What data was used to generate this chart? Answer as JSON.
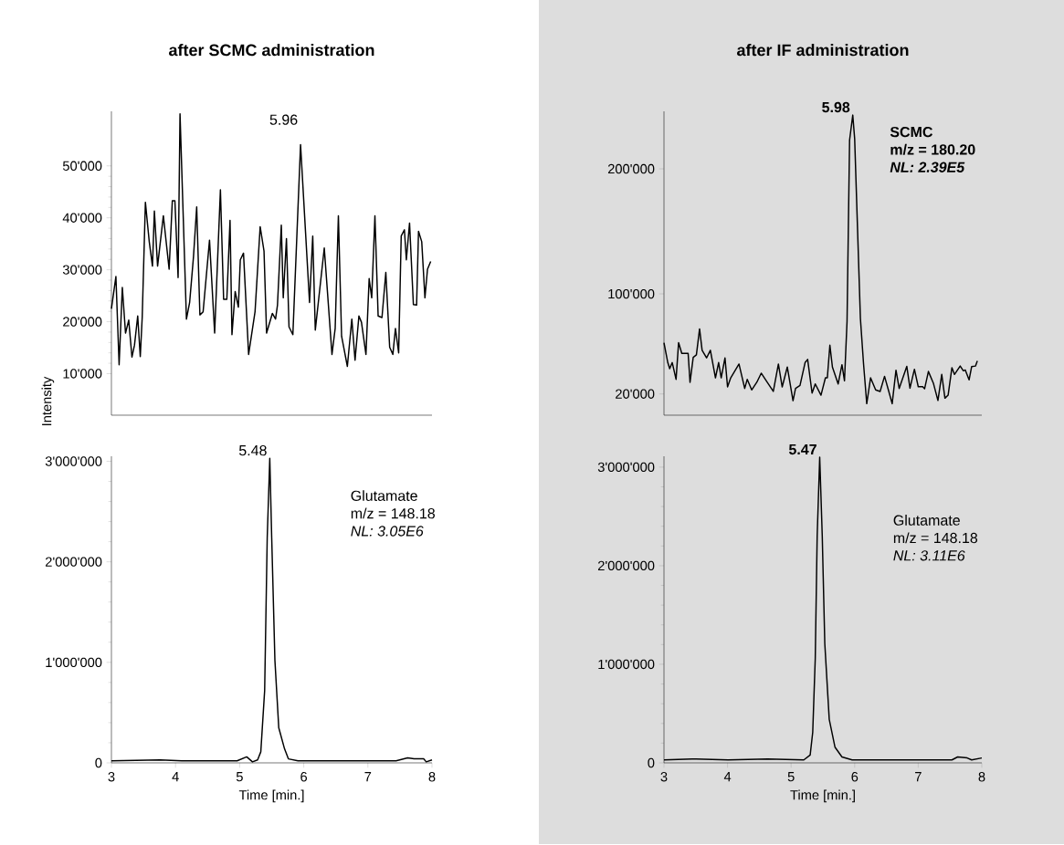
{
  "chart_data": [
    {
      "type": "line",
      "title": "after SCMC administration",
      "ylabel": "Intensity",
      "xlim": [
        3,
        8
      ],
      "ylim": [
        2000,
        60500
      ],
      "tick_labels": "y",
      "yticks": [
        {
          "value": 10000,
          "label": "10'000"
        },
        {
          "value": 20000,
          "label": "20'000"
        },
        {
          "value": 30000,
          "label": "30'000"
        },
        {
          "value": 40000,
          "label": "40'000"
        },
        {
          "value": 50000,
          "label": "50'000"
        }
      ],
      "annotations": [
        {
          "text": "5.96",
          "x": 5.95,
          "y": 54100
        }
      ],
      "series": [
        {
          "color": "#000000",
          "x": [
            3.0,
            3.07,
            3.12,
            3.17,
            3.22,
            3.27,
            3.32,
            3.36,
            3.41,
            3.45,
            3.48,
            3.53,
            3.59,
            3.64,
            3.67,
            3.72,
            3.81,
            3.9,
            3.95,
            3.99,
            4.04,
            4.07,
            4.17,
            4.22,
            4.28,
            4.33,
            4.38,
            4.43,
            4.53,
            4.61,
            4.7,
            4.75,
            4.8,
            4.85,
            4.88,
            4.93,
            4.98,
            5.01,
            5.06,
            5.14,
            5.24,
            5.32,
            5.38,
            5.42,
            5.51,
            5.56,
            5.59,
            5.65,
            5.68,
            5.73,
            5.77,
            5.83,
            5.95,
            6.09,
            6.14,
            6.18,
            6.32,
            6.44,
            6.49,
            6.54,
            6.59,
            6.68,
            6.75,
            6.8,
            6.86,
            6.9,
            6.97,
            7.02,
            7.06,
            7.11,
            7.16,
            7.22,
            7.28,
            7.34,
            7.39,
            7.43,
            7.48,
            7.52,
            7.57,
            7.6,
            7.65,
            7.71,
            7.76,
            7.79,
            7.84,
            7.89,
            7.93,
            7.98
          ],
          "values": [
            22500,
            28700,
            11700,
            26600,
            17800,
            20300,
            13200,
            15500,
            21100,
            13300,
            20800,
            43000,
            35400,
            30700,
            41300,
            30700,
            40400,
            30100,
            43300,
            43300,
            28500,
            60000,
            20500,
            23700,
            32500,
            42100,
            21300,
            21900,
            35700,
            17800,
            45400,
            24300,
            24300,
            39500,
            17500,
            25800,
            22800,
            31900,
            33200,
            13700,
            21900,
            38300,
            33600,
            17800,
            21600,
            20500,
            23200,
            38600,
            24600,
            36000,
            19000,
            17500,
            54100,
            23700,
            36500,
            18400,
            34200,
            13700,
            18700,
            40400,
            17200,
            11400,
            20500,
            12600,
            21100,
            19900,
            13700,
            28300,
            24600,
            40400,
            21100,
            20800,
            29500,
            15100,
            13700,
            18700,
            14000,
            36500,
            37700,
            31900,
            39000,
            23300,
            23200,
            37400,
            35400,
            24600,
            30100,
            31600
          ]
        }
      ]
    },
    {
      "type": "line",
      "xlabel": "Time [min.]",
      "xlim": [
        3,
        8
      ],
      "ylim": [
        0,
        3050000
      ],
      "xticks": [
        3,
        4,
        5,
        6,
        7,
        8
      ],
      "yticks": [
        0,
        {
          "value": 1000000,
          "label": "1'000'000"
        },
        {
          "value": 2000000,
          "label": "2'000'000"
        },
        {
          "value": 3000000,
          "label": "3'000'000"
        }
      ],
      "annotations": [
        {
          "text": "5.48",
          "x": 5.47,
          "y": 3030000
        },
        "Glutamate",
        "m/z = 148.18",
        "*NL: 3.05E6*"
      ],
      "series": [
        {
          "color": "#000000",
          "x": [
            3.0,
            3.76,
            4.1,
            4.96,
            5.11,
            5.2,
            5.28,
            5.33,
            5.39,
            5.43,
            5.47,
            5.5,
            5.55,
            5.61,
            5.7,
            5.76,
            5.91,
            6.48,
            7.44,
            7.62,
            7.72,
            7.87,
            7.91,
            8.0
          ],
          "values": [
            20000,
            30000,
            20000,
            20000,
            60000,
            10000,
            30000,
            110000,
            720000,
            2240000,
            3030000,
            2240000,
            1020000,
            350000,
            140000,
            40000,
            20000,
            20000,
            20000,
            50000,
            40000,
            40000,
            10000,
            30000
          ]
        }
      ]
    },
    {
      "type": "line",
      "title": "after IF administration",
      "xlim": [
        3,
        8
      ],
      "ylim": [
        3000,
        246000
      ],
      "tick_labels": "y",
      "yticks": [
        {
          "value": 20000,
          "label": "20'000"
        },
        {
          "value": 100000,
          "label": "100'000"
        },
        {
          "value": 200000,
          "label": "200'000"
        }
      ],
      "annotations": [
        {
          "text": "5.98",
          "x": 5.97,
          "y": 243000
        },
        "SCMC",
        "m/z = 180.20",
        "*NL: 2.39E5*"
      ],
      "series": [
        {
          "color": "#000000",
          "x": [
            3.0,
            3.06,
            3.09,
            3.13,
            3.19,
            3.23,
            3.28,
            3.38,
            3.41,
            3.46,
            3.51,
            3.56,
            3.6,
            3.67,
            3.73,
            3.81,
            3.86,
            3.9,
            3.96,
            4.0,
            4.05,
            4.18,
            4.27,
            4.31,
            4.38,
            4.46,
            4.53,
            4.61,
            4.72,
            4.8,
            4.86,
            4.94,
            5.03,
            5.07,
            5.14,
            5.22,
            5.26,
            5.33,
            5.38,
            5.47,
            5.54,
            5.57,
            5.61,
            5.65,
            5.74,
            5.8,
            5.84,
            5.88,
            5.92,
            5.97,
            6.0,
            6.09,
            6.14,
            6.19,
            6.25,
            6.33,
            6.4,
            6.47,
            6.53,
            6.59,
            6.65,
            6.7,
            6.82,
            6.87,
            6.94,
            7.0,
            7.07,
            7.1,
            7.16,
            7.24,
            7.31,
            7.37,
            7.42,
            7.47,
            7.53,
            7.57,
            7.66,
            7.71,
            7.74,
            7.8,
            7.84,
            7.9,
            7.93
          ],
          "values": [
            61000,
            45100,
            40200,
            45100,
            31700,
            61000,
            52400,
            52400,
            29300,
            49300,
            51200,
            72000,
            54900,
            48800,
            54900,
            32900,
            45100,
            32900,
            48800,
            25600,
            32900,
            43900,
            24400,
            31700,
            23200,
            29300,
            36600,
            30500,
            22000,
            43900,
            25600,
            41500,
            14600,
            24400,
            26800,
            45100,
            47600,
            20700,
            28000,
            19000,
            32900,
            32900,
            59000,
            41500,
            28000,
            43400,
            30500,
            78000,
            223000,
            243000,
            224000,
            80500,
            43900,
            12200,
            32900,
            23200,
            22000,
            34100,
            23200,
            12200,
            39000,
            24400,
            42100,
            24600,
            39700,
            25800,
            25800,
            24100,
            38000,
            28300,
            14800,
            35600,
            16600,
            19000,
            41000,
            35600,
            42300,
            38500,
            39200,
            31200,
            41800,
            42300,
            46500
          ]
        }
      ]
    },
    {
      "type": "line",
      "xlabel": "Time [min.]",
      "xlim": [
        3,
        8
      ],
      "ylim": [
        0,
        3110000
      ],
      "xticks": [
        3,
        4,
        5,
        6,
        7,
        8
      ],
      "yticks": [
        0,
        {
          "value": 1000000,
          "label": "1'000'000"
        },
        {
          "value": 2000000,
          "label": "2'000'000"
        },
        {
          "value": 3000000,
          "label": "3'000'000"
        }
      ],
      "annotations": [
        {
          "text": "5.47",
          "x": 5.45,
          "y": 3100000
        },
        "Glutamate",
        "m/z = 148.18",
        "*NL: 3.11E6*"
      ],
      "series": [
        {
          "color": "#000000",
          "x": [
            3.0,
            3.44,
            4.01,
            4.63,
            5.2,
            5.3,
            5.34,
            5.38,
            5.41,
            5.45,
            5.49,
            5.53,
            5.6,
            5.69,
            5.8,
            5.96,
            6.77,
            7.53,
            7.62,
            7.77,
            7.84,
            8.0
          ],
          "values": [
            30000,
            40000,
            30000,
            40000,
            30000,
            80000,
            310000,
            1060000,
            2300000,
            3100000,
            2300000,
            1210000,
            440000,
            160000,
            60000,
            30000,
            30000,
            30000,
            60000,
            50000,
            30000,
            50000
          ]
        }
      ]
    }
  ]
}
